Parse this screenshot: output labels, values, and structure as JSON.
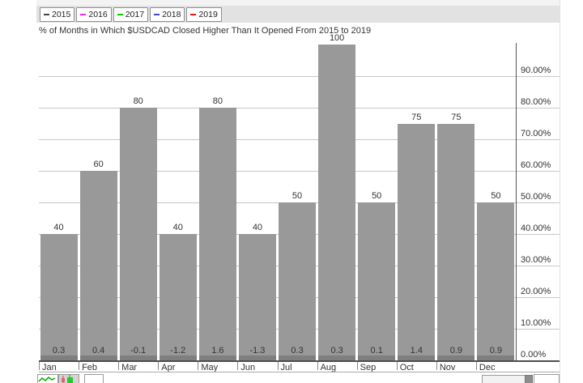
{
  "header": {
    "legend": [
      {
        "year": "2015",
        "color": "#444444"
      },
      {
        "year": "2016",
        "color": "#ff22ff"
      },
      {
        "year": "2017",
        "color": "#00cc00"
      },
      {
        "year": "2018",
        "color": "#4444cc"
      },
      {
        "year": "2019",
        "color": "#ee1111"
      }
    ]
  },
  "chart_data": {
    "type": "bar",
    "title": "% of Months in Which $USDCAD Closed Higher Than It Opened From 2015 to 2019",
    "categories": [
      "Jan",
      "Feb",
      "Mar",
      "Apr",
      "May",
      "Jun",
      "Jul",
      "Aug",
      "Sep",
      "Oct",
      "Nov",
      "Dec"
    ],
    "values": [
      40,
      60,
      80,
      40,
      80,
      40,
      50,
      100,
      50,
      75,
      75,
      50
    ],
    "bar_value_labels": [
      "40",
      "60",
      "80",
      "40",
      "80",
      "40",
      "50",
      "100",
      "50",
      "75",
      "75",
      "50"
    ],
    "bottom_row_values": [
      "0.3",
      "0.4",
      "-0.1",
      "-1.2",
      "1.6",
      "-1.3",
      "0.3",
      "0.3",
      "0.1",
      "1.4",
      "0.9",
      "0.9"
    ],
    "y_tick_labels": [
      "0.00%",
      "10.00%",
      "20.00%",
      "30.00%",
      "40.00%",
      "50.00%",
      "60.00%",
      "70.00%",
      "80.00%",
      "90.00%"
    ],
    "ylim": [
      0,
      100
    ],
    "grid": true,
    "legend_position": "top-left",
    "xlabel": "",
    "ylabel": "",
    "colors": {
      "bar": "#999999",
      "bar_base": "#7f7f7f",
      "grid": "#c8c8c8",
      "axis": "#555555",
      "label": "#333333"
    }
  },
  "footer": {
    "icons": [
      {
        "name": "area-chart-icon"
      },
      {
        "name": "candlestick-chart-icon"
      },
      {
        "name": "blank-box-button"
      }
    ],
    "scrollbar_name": "horizontal-scrollbar"
  }
}
